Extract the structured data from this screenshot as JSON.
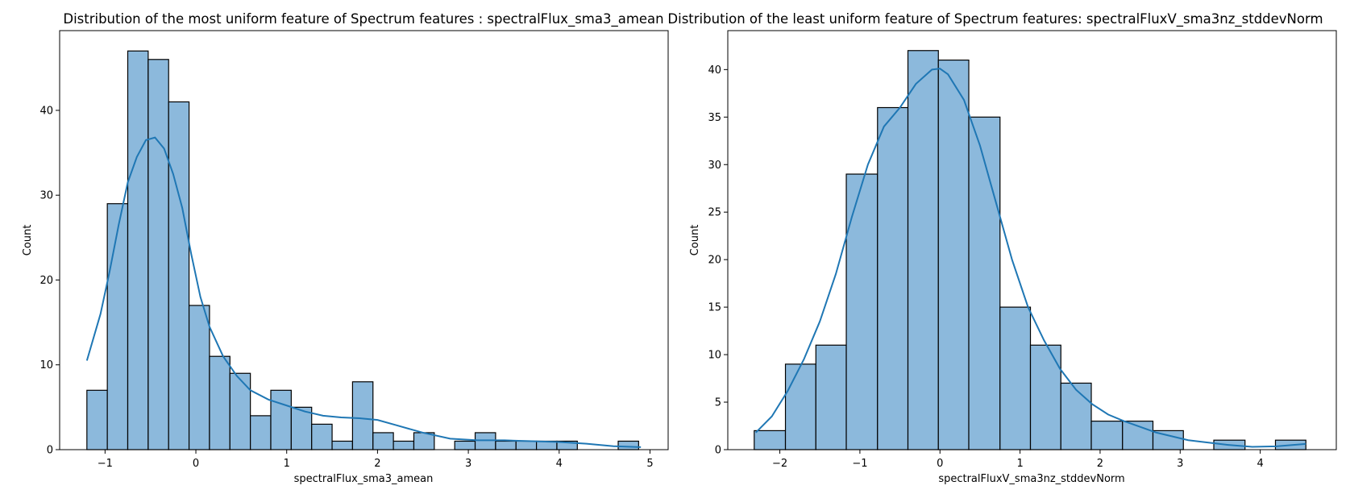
{
  "style": {
    "bar_fill": "#8cb9dc",
    "bar_edge": "#000000",
    "kde_color": "#1f77b4",
    "axes_color": "#000000",
    "background": "#ffffff"
  },
  "chart_data": [
    {
      "type": "bar",
      "subtype": "histogram-with-kde",
      "title": "Distribution of the most uniform feature of Spectrum features : spectralFlux_sma3_amean",
      "xlabel": "spectralFlux_sma3_amean",
      "ylabel": "Count",
      "xlim": [
        -1.5,
        5.2
      ],
      "ylim": [
        0,
        49.4
      ],
      "xticks": [
        -1,
        0,
        1,
        2,
        3,
        4,
        5
      ],
      "xtick_labels": [
        "−1",
        "0",
        "1",
        "2",
        "3",
        "4",
        "5"
      ],
      "yticks": [
        0,
        10,
        20,
        30,
        40
      ],
      "ytick_labels": [
        "0",
        "10",
        "20",
        "30",
        "40"
      ],
      "grid": false,
      "bin_edges": [
        -1.2,
        -0.975,
        -0.75,
        -0.525,
        -0.3,
        -0.075,
        0.15,
        0.375,
        0.6,
        0.825,
        1.05,
        1.275,
        1.5,
        1.725,
        1.95,
        2.175,
        2.4,
        2.625,
        2.85,
        3.075,
        3.3,
        3.525,
        3.75,
        3.975,
        4.2,
        4.425,
        4.65,
        4.875
      ],
      "counts": [
        7,
        29,
        47,
        46,
        41,
        17,
        11,
        9,
        4,
        7,
        5,
        3,
        1,
        8,
        2,
        1,
        2,
        0,
        1,
        2,
        1,
        1,
        1,
        1,
        0,
        0,
        1
      ],
      "kde": {
        "x": [
          -1.2,
          -1.05,
          -0.95,
          -0.85,
          -0.75,
          -0.65,
          -0.55,
          -0.45,
          -0.35,
          -0.25,
          -0.15,
          -0.05,
          0.05,
          0.15,
          0.3,
          0.45,
          0.6,
          0.8,
          1.0,
          1.2,
          1.4,
          1.6,
          1.8,
          2.0,
          2.2,
          2.5,
          2.8,
          3.1,
          3.4,
          3.7,
          4.0,
          4.3,
          4.6,
          4.9
        ],
        "y": [
          10.5,
          16,
          21,
          26.5,
          31.5,
          34.5,
          36.5,
          36.8,
          35.5,
          32.5,
          28.5,
          23,
          18,
          14.5,
          11,
          8.7,
          7,
          5.9,
          5.2,
          4.5,
          4.0,
          3.8,
          3.7,
          3.5,
          2.9,
          2.0,
          1.3,
          1.1,
          1.1,
          1.0,
          0.9,
          0.7,
          0.4,
          0.3
        ]
      }
    },
    {
      "type": "bar",
      "subtype": "histogram-with-kde",
      "title": "Distribution of the least uniform feature of Spectrum features: spectralFluxV_sma3nz_stddevNorm",
      "xlabel": "spectralFluxV_sma3nz_stddevNorm",
      "ylabel": "Count",
      "xlim": [
        -2.65,
        4.95
      ],
      "ylim": [
        0,
        44.1
      ],
      "xticks": [
        -2,
        -1,
        0,
        1,
        2,
        3,
        4
      ],
      "xtick_labels": [
        "−2",
        "−1",
        "0",
        "1",
        "2",
        "3",
        "4"
      ],
      "yticks": [
        0,
        5,
        10,
        15,
        20,
        25,
        30,
        35,
        40
      ],
      "ytick_labels": [
        "0",
        "5",
        "10",
        "15",
        "20",
        "25",
        "30",
        "35",
        "40"
      ],
      "grid": false,
      "bin_edges": [
        -2.32,
        -1.93,
        -1.55,
        -1.17,
        -0.78,
        -0.4,
        -0.02,
        0.36,
        0.75,
        1.13,
        1.51,
        1.89,
        2.28,
        2.66,
        3.04,
        3.42,
        3.81,
        4.19,
        4.57
      ],
      "counts": [
        2,
        9,
        11,
        29,
        36,
        42,
        41,
        35,
        15,
        11,
        7,
        3,
        3,
        2,
        0,
        1,
        0,
        1
      ],
      "kde": {
        "x": [
          -2.3,
          -2.1,
          -1.9,
          -1.7,
          -1.5,
          -1.3,
          -1.1,
          -0.9,
          -0.7,
          -0.5,
          -0.3,
          -0.1,
          0.0,
          0.1,
          0.3,
          0.5,
          0.7,
          0.9,
          1.1,
          1.3,
          1.5,
          1.7,
          1.9,
          2.1,
          2.3,
          2.5,
          2.7,
          2.9,
          3.1,
          3.3,
          3.6,
          3.9,
          4.2,
          4.57
        ],
        "y": [
          1.8,
          3.5,
          6.2,
          9.5,
          13.5,
          18.5,
          24.5,
          30,
          34,
          36,
          38.5,
          40,
          40.1,
          39.5,
          36.8,
          32,
          26,
          20,
          15,
          11.5,
          8.5,
          6.3,
          4.8,
          3.7,
          3.0,
          2.4,
          1.8,
          1.4,
          1.0,
          0.8,
          0.5,
          0.3,
          0.35,
          0.6
        ]
      }
    }
  ]
}
